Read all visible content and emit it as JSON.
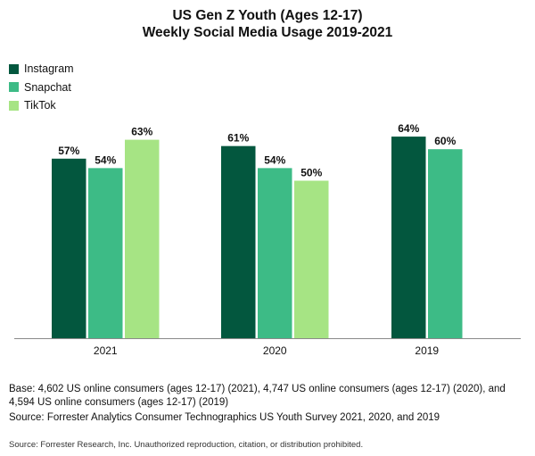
{
  "chart_data": {
    "type": "bar",
    "title": "US Gen Z Youth (Ages 12-17)",
    "subtitle": "Weekly Social Media Usage 2019-2021",
    "categories": [
      "2021",
      "2020",
      "2019"
    ],
    "series": [
      {
        "name": "Instagram",
        "color": "#03573e",
        "values": [
          57,
          61,
          64
        ]
      },
      {
        "name": "Snapchat",
        "color": "#3dbb86",
        "values": [
          54,
          54,
          60
        ]
      },
      {
        "name": "TikTok",
        "color": "#a6e484",
        "values": [
          63,
          50,
          null
        ]
      }
    ],
    "value_suffix": "%",
    "ylim": [
      0,
      100
    ],
    "grid": false,
    "legend_position": "top-left",
    "y_axis_shown": false
  },
  "notes": {
    "base": "Base: 4,602 US online consumers (ages 12-17) (2021), 4,747 US online consumers (ages 12-17) (2020), and 4,594 US online consumers (ages 12-17) (2019)",
    "source": "Source: Forrester Analytics Consumer Technographics US Youth Survey 2021, 2020, and 2019",
    "copyright": "Source: Forrester Research, Inc. Unauthorized reproduction, citation, or distribution prohibited."
  }
}
